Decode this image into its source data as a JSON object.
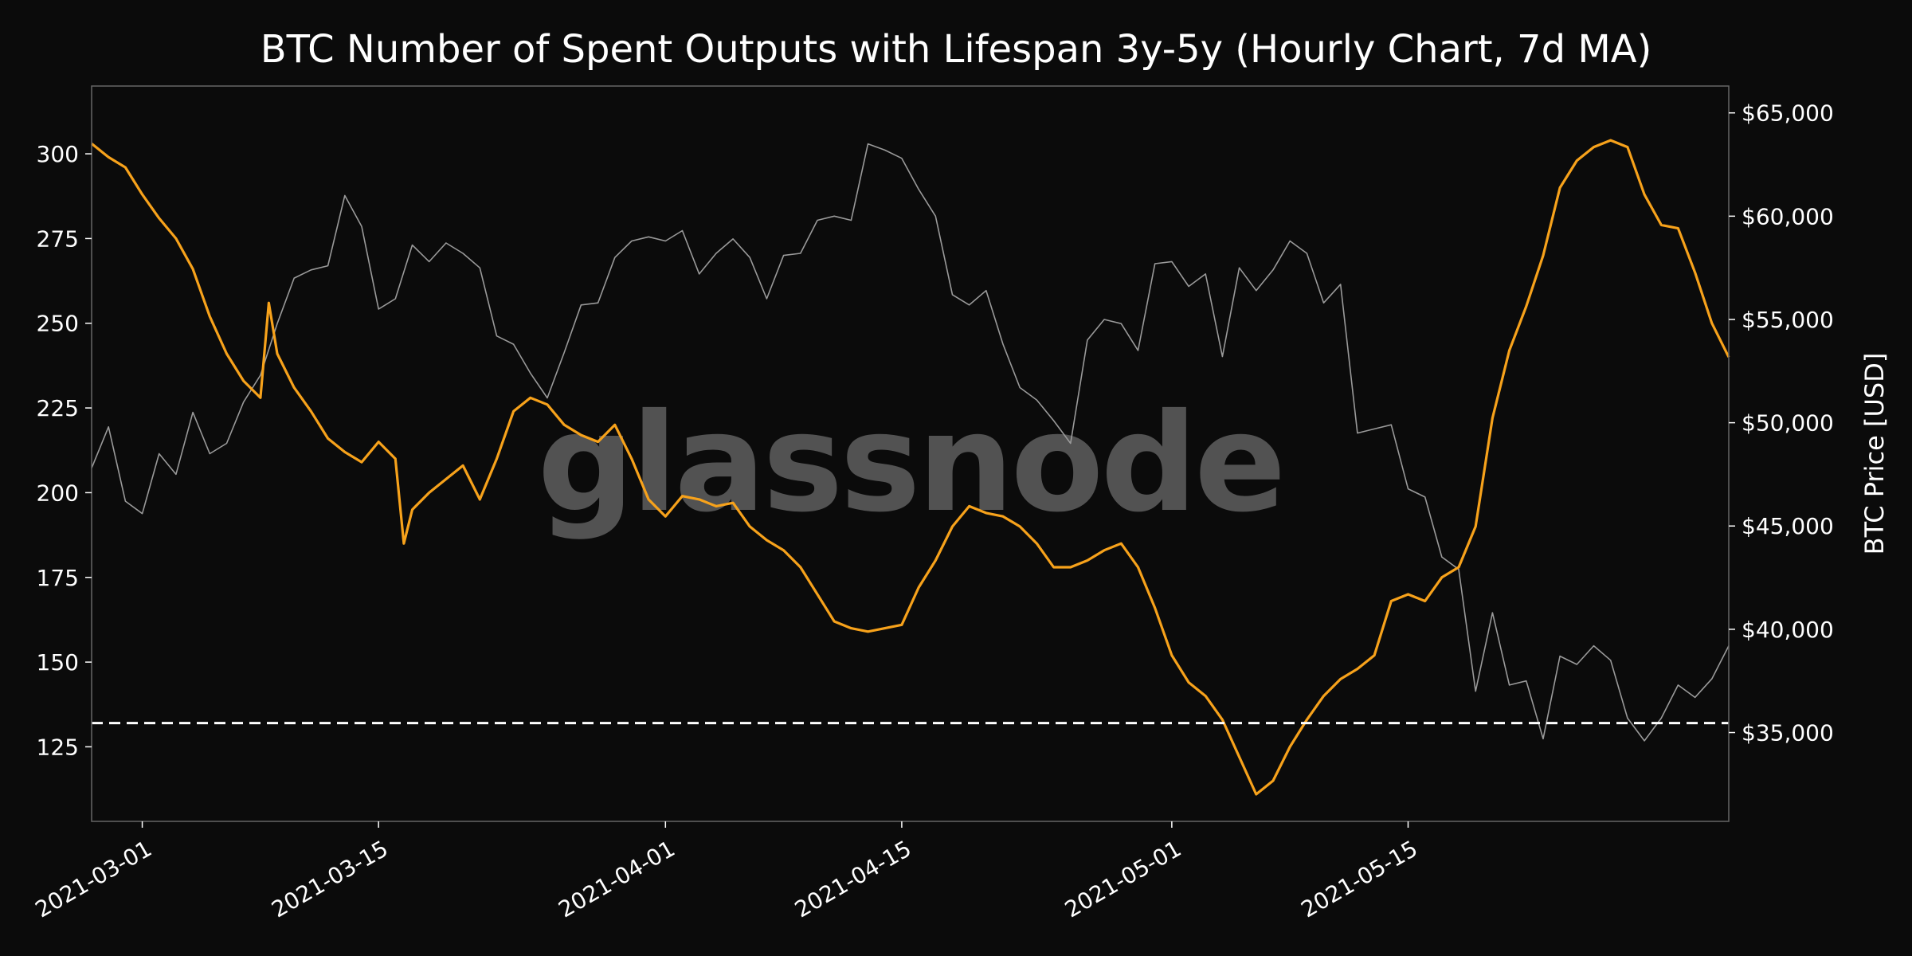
{
  "chart_data": {
    "type": "line",
    "title": "BTC Number of Spent Outputs with Lifespan 3y-5y (Hourly Chart, 7d MA)",
    "watermark": "glassnode",
    "y_left": {
      "ticks": [
        125,
        150,
        175,
        200,
        225,
        250,
        275,
        300
      ],
      "range": [
        103,
        320
      ]
    },
    "y_right": {
      "label": "BTC Price [USD]",
      "ticks": [
        35000,
        40000,
        45000,
        50000,
        55000,
        60000,
        65000
      ],
      "tick_labels": [
        "$35,000",
        "$40,000",
        "$45,000",
        "$50,000",
        "$55,000",
        "$60,000",
        "$65,000"
      ],
      "range": [
        30700,
        66300
      ]
    },
    "x_axis": {
      "range": [
        "2021-02-26",
        "2021-06-03"
      ],
      "ticks": [
        "2021-03-01",
        "2021-03-15",
        "2021-04-01",
        "2021-04-15",
        "2021-05-01",
        "2021-05-15"
      ]
    },
    "grid": false,
    "reference_line": {
      "value": 132,
      "style": "dashed",
      "color": "#ffffff"
    },
    "series": [
      {
        "axis": "left",
        "color": "#f7a21b",
        "points": [
          [
            "2021-02-26",
            303
          ],
          [
            "2021-02-27",
            299
          ],
          [
            "2021-02-28",
            296
          ],
          [
            "2021-03-01",
            288
          ],
          [
            "2021-03-02",
            281
          ],
          [
            "2021-03-03",
            275
          ],
          [
            "2021-03-04",
            266
          ],
          [
            "2021-03-05",
            252
          ],
          [
            "2021-03-06",
            241
          ],
          [
            "2021-03-07",
            233
          ],
          [
            "2021-03-08",
            228
          ],
          [
            "2021-03-08T12",
            256
          ],
          [
            "2021-03-09",
            241
          ],
          [
            "2021-03-10",
            231
          ],
          [
            "2021-03-11",
            224
          ],
          [
            "2021-03-12",
            216
          ],
          [
            "2021-03-13",
            212
          ],
          [
            "2021-03-14",
            209
          ],
          [
            "2021-03-15",
            215
          ],
          [
            "2021-03-16",
            210
          ],
          [
            "2021-03-16T12",
            185
          ],
          [
            "2021-03-17",
            195
          ],
          [
            "2021-03-18",
            200
          ],
          [
            "2021-03-19",
            204
          ],
          [
            "2021-03-20",
            208
          ],
          [
            "2021-03-21",
            198
          ],
          [
            "2021-03-22",
            210
          ],
          [
            "2021-03-23",
            224
          ],
          [
            "2021-03-24",
            228
          ],
          [
            "2021-03-25",
            226
          ],
          [
            "2021-03-26",
            220
          ],
          [
            "2021-03-27",
            217
          ],
          [
            "2021-03-28",
            215
          ],
          [
            "2021-03-29",
            220
          ],
          [
            "2021-03-30",
            210
          ],
          [
            "2021-03-31",
            198
          ],
          [
            "2021-04-01",
            193
          ],
          [
            "2021-04-02",
            199
          ],
          [
            "2021-04-03",
            198
          ],
          [
            "2021-04-04",
            196
          ],
          [
            "2021-04-05",
            197
          ],
          [
            "2021-04-06",
            190
          ],
          [
            "2021-04-07",
            186
          ],
          [
            "2021-04-08",
            183
          ],
          [
            "2021-04-09",
            178
          ],
          [
            "2021-04-10",
            170
          ],
          [
            "2021-04-11",
            162
          ],
          [
            "2021-04-12",
            160
          ],
          [
            "2021-04-13",
            159
          ],
          [
            "2021-04-14",
            160
          ],
          [
            "2021-04-15",
            161
          ],
          [
            "2021-04-16",
            172
          ],
          [
            "2021-04-17",
            180
          ],
          [
            "2021-04-18",
            190
          ],
          [
            "2021-04-19",
            196
          ],
          [
            "2021-04-20",
            194
          ],
          [
            "2021-04-21",
            193
          ],
          [
            "2021-04-22",
            190
          ],
          [
            "2021-04-23",
            185
          ],
          [
            "2021-04-24",
            178
          ],
          [
            "2021-04-25",
            178
          ],
          [
            "2021-04-26",
            180
          ],
          [
            "2021-04-27",
            183
          ],
          [
            "2021-04-28",
            185
          ],
          [
            "2021-04-29",
            178
          ],
          [
            "2021-04-30",
            166
          ],
          [
            "2021-05-01",
            152
          ],
          [
            "2021-05-02",
            144
          ],
          [
            "2021-05-03",
            140
          ],
          [
            "2021-05-04",
            133
          ],
          [
            "2021-05-05",
            122
          ],
          [
            "2021-05-06",
            111
          ],
          [
            "2021-05-07",
            115
          ],
          [
            "2021-05-08",
            125
          ],
          [
            "2021-05-09",
            133
          ],
          [
            "2021-05-10",
            140
          ],
          [
            "2021-05-11",
            145
          ],
          [
            "2021-05-12",
            148
          ],
          [
            "2021-05-13",
            152
          ],
          [
            "2021-05-14",
            168
          ],
          [
            "2021-05-15",
            170
          ],
          [
            "2021-05-16",
            168
          ],
          [
            "2021-05-17",
            175
          ],
          [
            "2021-05-18",
            178
          ],
          [
            "2021-05-19",
            190
          ],
          [
            "2021-05-20",
            222
          ],
          [
            "2021-05-21",
            242
          ],
          [
            "2021-05-22",
            255
          ],
          [
            "2021-05-23",
            270
          ],
          [
            "2021-05-24",
            290
          ],
          [
            "2021-05-25",
            298
          ],
          [
            "2021-05-26",
            302
          ],
          [
            "2021-05-27",
            304
          ],
          [
            "2021-05-28",
            302
          ],
          [
            "2021-05-29",
            288
          ],
          [
            "2021-05-30",
            279
          ],
          [
            "2021-05-31",
            278
          ],
          [
            "2021-06-01",
            265
          ],
          [
            "2021-06-02",
            250
          ],
          [
            "2021-06-03",
            240
          ]
        ]
      },
      {
        "axis": "right",
        "color": "#9a9a9a",
        "points": [
          [
            "2021-02-26",
            47800
          ],
          [
            "2021-02-27",
            49800
          ],
          [
            "2021-02-28",
            46200
          ],
          [
            "2021-03-01",
            45600
          ],
          [
            "2021-03-02",
            48500
          ],
          [
            "2021-03-03",
            47500
          ],
          [
            "2021-03-04",
            50500
          ],
          [
            "2021-03-05",
            48500
          ],
          [
            "2021-03-06",
            49000
          ],
          [
            "2021-03-07",
            51000
          ],
          [
            "2021-03-08",
            52300
          ],
          [
            "2021-03-09",
            54800
          ],
          [
            "2021-03-10",
            57000
          ],
          [
            "2021-03-11",
            57400
          ],
          [
            "2021-03-12",
            57600
          ],
          [
            "2021-03-13",
            61000
          ],
          [
            "2021-03-14",
            59500
          ],
          [
            "2021-03-15",
            55500
          ],
          [
            "2021-03-16",
            56000
          ],
          [
            "2021-03-17",
            58600
          ],
          [
            "2021-03-18",
            57800
          ],
          [
            "2021-03-19",
            58700
          ],
          [
            "2021-03-20",
            58200
          ],
          [
            "2021-03-21",
            57500
          ],
          [
            "2021-03-22",
            54200
          ],
          [
            "2021-03-23",
            53800
          ],
          [
            "2021-03-24",
            52400
          ],
          [
            "2021-03-25",
            51200
          ],
          [
            "2021-03-26",
            53400
          ],
          [
            "2021-03-27",
            55700
          ],
          [
            "2021-03-28",
            55800
          ],
          [
            "2021-03-29",
            58000
          ],
          [
            "2021-03-30",
            58800
          ],
          [
            "2021-03-31",
            59000
          ],
          [
            "2021-04-01",
            58800
          ],
          [
            "2021-04-02",
            59300
          ],
          [
            "2021-04-03",
            57200
          ],
          [
            "2021-04-04",
            58200
          ],
          [
            "2021-04-05",
            58900
          ],
          [
            "2021-04-06",
            58000
          ],
          [
            "2021-04-07",
            56000
          ],
          [
            "2021-04-08",
            58100
          ],
          [
            "2021-04-09",
            58200
          ],
          [
            "2021-04-10",
            59800
          ],
          [
            "2021-04-11",
            60000
          ],
          [
            "2021-04-12",
            59800
          ],
          [
            "2021-04-13",
            63500
          ],
          [
            "2021-04-14",
            63200
          ],
          [
            "2021-04-15",
            62800
          ],
          [
            "2021-04-16",
            61300
          ],
          [
            "2021-04-17",
            60000
          ],
          [
            "2021-04-18",
            56200
          ],
          [
            "2021-04-19",
            55700
          ],
          [
            "2021-04-20",
            56400
          ],
          [
            "2021-04-21",
            53800
          ],
          [
            "2021-04-22",
            51700
          ],
          [
            "2021-04-23",
            51100
          ],
          [
            "2021-04-24",
            50100
          ],
          [
            "2021-04-25",
            49000
          ],
          [
            "2021-04-26",
            54000
          ],
          [
            "2021-04-27",
            55000
          ],
          [
            "2021-04-28",
            54800
          ],
          [
            "2021-04-29",
            53500
          ],
          [
            "2021-04-30",
            57700
          ],
          [
            "2021-05-01",
            57800
          ],
          [
            "2021-05-02",
            56600
          ],
          [
            "2021-05-03",
            57200
          ],
          [
            "2021-05-04",
            53200
          ],
          [
            "2021-05-05",
            57500
          ],
          [
            "2021-05-06",
            56400
          ],
          [
            "2021-05-07",
            57400
          ],
          [
            "2021-05-08",
            58800
          ],
          [
            "2021-05-09",
            58200
          ],
          [
            "2021-05-10",
            55800
          ],
          [
            "2021-05-11",
            56700
          ],
          [
            "2021-05-12",
            49500
          ],
          [
            "2021-05-13",
            49700
          ],
          [
            "2021-05-14",
            49900
          ],
          [
            "2021-05-15",
            46800
          ],
          [
            "2021-05-16",
            46400
          ],
          [
            "2021-05-17",
            43500
          ],
          [
            "2021-05-18",
            42900
          ],
          [
            "2021-05-19",
            37000
          ],
          [
            "2021-05-20",
            40800
          ],
          [
            "2021-05-21",
            37300
          ],
          [
            "2021-05-22",
            37500
          ],
          [
            "2021-05-23",
            34700
          ],
          [
            "2021-05-24",
            38700
          ],
          [
            "2021-05-25",
            38300
          ],
          [
            "2021-05-26",
            39200
          ],
          [
            "2021-05-27",
            38500
          ],
          [
            "2021-05-28",
            35700
          ],
          [
            "2021-05-29",
            34600
          ],
          [
            "2021-05-30",
            35700
          ],
          [
            "2021-05-31",
            37300
          ],
          [
            "2021-06-01",
            36700
          ],
          [
            "2021-06-02",
            37600
          ],
          [
            "2021-06-03",
            39200
          ]
        ]
      }
    ]
  }
}
